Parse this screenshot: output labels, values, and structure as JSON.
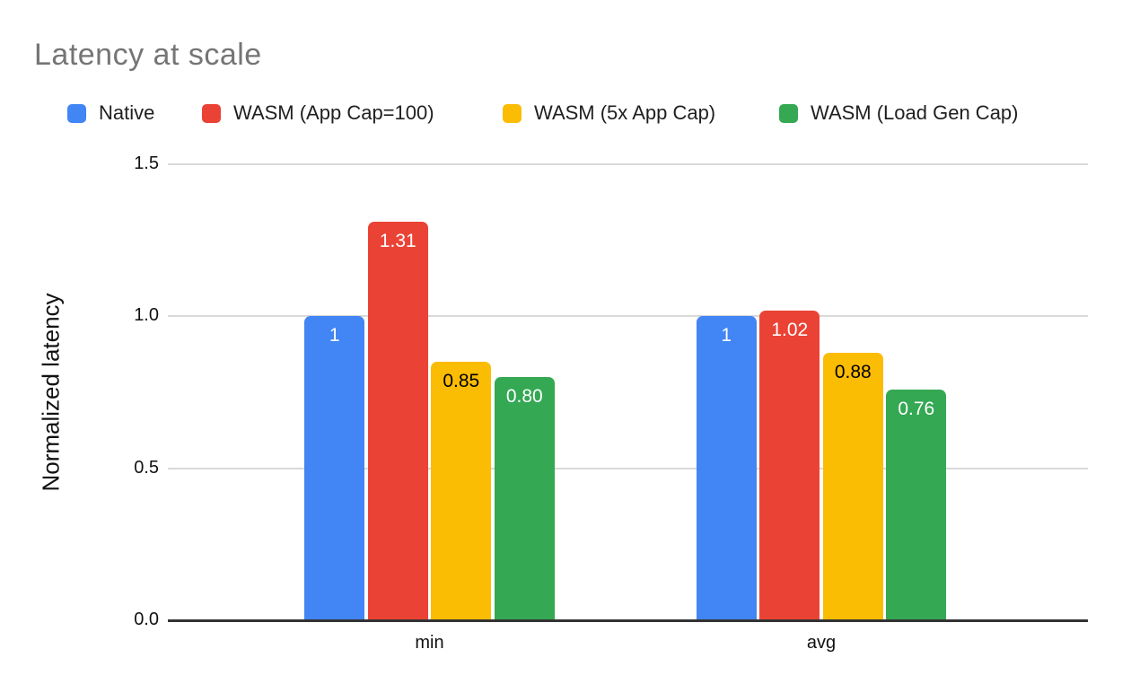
{
  "chart_data": {
    "type": "bar",
    "title": "Latency at scale",
    "categories": [
      "min",
      "avg"
    ],
    "series": [
      {
        "name": "Native",
        "color": "#4285f4",
        "label_color": "#ffffff",
        "values": [
          1.0,
          1.0
        ],
        "value_labels": [
          "1",
          "1"
        ]
      },
      {
        "name": "WASM (App Cap=100)",
        "color": "#ea4335",
        "label_color": "#ffffff",
        "values": [
          1.31,
          1.02
        ],
        "value_labels": [
          "1.31",
          "1.02"
        ]
      },
      {
        "name": "WASM (5x App Cap)",
        "color": "#fbbc04",
        "label_color": "#000000",
        "values": [
          0.85,
          0.88
        ],
        "value_labels": [
          "0.85",
          "0.88"
        ]
      },
      {
        "name": "WASM (Load Gen Cap)",
        "color": "#34a853",
        "label_color": "#ffffff",
        "values": [
          0.8,
          0.76
        ],
        "value_labels": [
          "0.80",
          "0.76"
        ]
      }
    ],
    "xlabel": "",
    "ylabel": "Normalized latency",
    "ylim": [
      0,
      1.5
    ],
    "yticks": [
      {
        "value": 0.0,
        "label": "0.0"
      },
      {
        "value": 0.5,
        "label": "0.5"
      },
      {
        "value": 1.0,
        "label": "1.0"
      },
      {
        "value": 1.5,
        "label": "1.5"
      }
    ],
    "grid": true,
    "legend_position": "top",
    "style": {
      "title_color": "#757575",
      "text_color": "#1f1f1f",
      "gridline_color": "#d9d9d9",
      "axis_line_color": "#333333",
      "background": "#ffffff"
    }
  }
}
